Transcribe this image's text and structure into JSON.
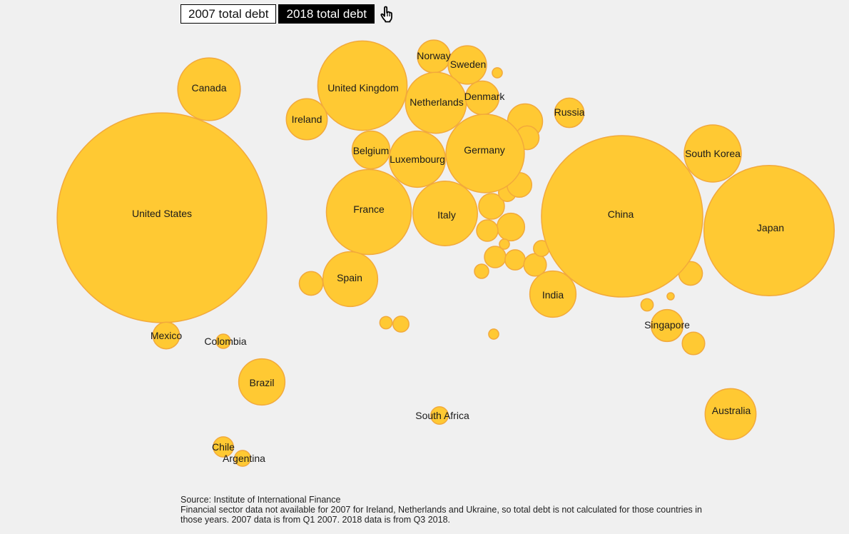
{
  "toggle": {
    "option_2007": "2007 total debt",
    "option_2018": "2018 total debt",
    "selected": "2018 total debt",
    "pointer_icon": "hand-pointer-icon"
  },
  "colors": {
    "bubble_fill": "#ffc933",
    "bubble_stroke": "#f2a93b",
    "background": "#f0f0f0"
  },
  "chart_data": {
    "type": "bubble",
    "title": "",
    "metric": "2018 total debt",
    "countries": [
      {
        "name": "United States",
        "size": 86.4
      },
      {
        "name": "Canada",
        "size": 7.7
      },
      {
        "name": "United Kingdom",
        "size": 15.7
      },
      {
        "name": "Ireland",
        "size": 3.3
      },
      {
        "name": "Norway",
        "size": 2.1
      },
      {
        "name": "Sweden",
        "size": 2.9
      },
      {
        "name": "Netherlands",
        "size": 7.3
      },
      {
        "name": "Denmark",
        "size": 2.2
      },
      {
        "name": "Russia",
        "size": 1.7
      },
      {
        "name": "Belgium",
        "size": 2.8
      },
      {
        "name": "Luxembourg",
        "size": 6.2
      },
      {
        "name": "Germany",
        "size": 12.1
      },
      {
        "name": "France",
        "size": 14.2
      },
      {
        "name": "Italy",
        "size": 8.2
      },
      {
        "name": "Spain",
        "size": 5.9
      },
      {
        "name": "China",
        "size": 51.2
      },
      {
        "name": "South Korea",
        "size": 6.4
      },
      {
        "name": "Japan",
        "size": 33.4
      },
      {
        "name": "India",
        "size": 4.2
      },
      {
        "name": "Singapore",
        "size": 2.0
      },
      {
        "name": "Mexico",
        "size": 1.4
      },
      {
        "name": "Colombia",
        "size": 0.4
      },
      {
        "name": "Brazil",
        "size": 4.2
      },
      {
        "name": "South Africa",
        "size": 0.6
      },
      {
        "name": "Australia",
        "size": 5.1
      },
      {
        "name": "Chile",
        "size": 0.8
      },
      {
        "name": "Argentina",
        "size": 0.5
      }
    ],
    "unlabeled_sizes": [
      2.4,
      1.1,
      0.2,
      1.1,
      0.5,
      0.3,
      1.5,
      1.3,
      0.9,
      0.2,
      0.9,
      0.8,
      1.0,
      0.4,
      0.5,
      0.6,
      1.2,
      1.1,
      0.2,
      0.1,
      0.3,
      1.0
    ]
  },
  "footnote": {
    "source": "Source: Institute of International Finance",
    "note": "Financial sector data not available for 2007 for Ireland, Netherlands and Ukraine, so total debt is not calculated for those countries in those years. 2007 data is from Q1 2007. 2018 data is from Q3 2018."
  }
}
